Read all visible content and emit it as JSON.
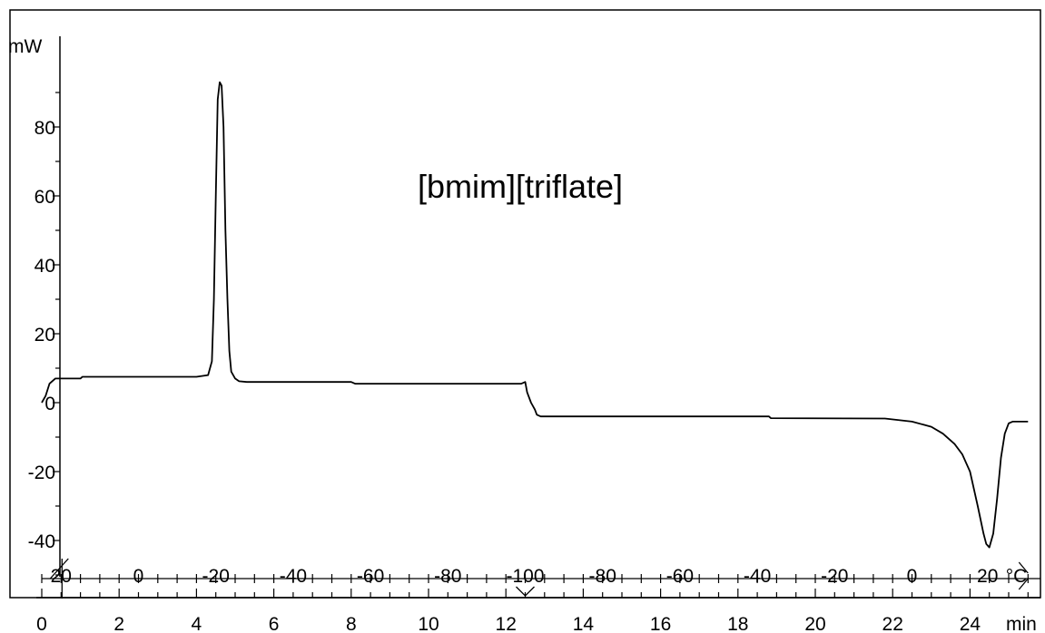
{
  "chart_data": {
    "type": "line",
    "title": "",
    "annotation": "[bmim][triflate]",
    "ylabel": "mW",
    "xlabel": "min",
    "temp_unit": "°C",
    "xlim": [
      0,
      25.5
    ],
    "ylim": [
      -50,
      100
    ],
    "y_ticks": [
      -40,
      -20,
      0,
      20,
      40,
      60,
      80
    ],
    "x_ticks": [
      0,
      2,
      4,
      6,
      8,
      10,
      12,
      14,
      16,
      18,
      20,
      22,
      24
    ],
    "temperature_ticks": [
      {
        "time": 0.5,
        "label": "20"
      },
      {
        "time": 2.5,
        "label": "0"
      },
      {
        "time": 4.5,
        "label": "-20"
      },
      {
        "time": 6.5,
        "label": "-40"
      },
      {
        "time": 8.5,
        "label": "-60"
      },
      {
        "time": 10.5,
        "label": "-80"
      },
      {
        "time": 12.5,
        "label": "-100"
      },
      {
        "time": 14.5,
        "label": "-80"
      },
      {
        "time": 16.5,
        "label": "-60"
      },
      {
        "time": 18.5,
        "label": "-40"
      },
      {
        "time": 20.5,
        "label": "-20"
      },
      {
        "time": 22.5,
        "label": "0"
      },
      {
        "time": 24.5,
        "label": "20"
      }
    ],
    "segment_markers": [
      0.5,
      12.5,
      25.5
    ],
    "grid": false,
    "series": [
      {
        "points": [
          [
            0.0,
            0
          ],
          [
            0.1,
            2
          ],
          [
            0.2,
            5.5
          ],
          [
            0.35,
            7
          ],
          [
            0.5,
            7
          ],
          [
            1.0,
            7
          ],
          [
            1.05,
            7.5
          ],
          [
            2.0,
            7.5
          ],
          [
            4.0,
            7.5
          ],
          [
            4.3,
            8
          ],
          [
            4.4,
            12
          ],
          [
            4.45,
            30
          ],
          [
            4.5,
            60
          ],
          [
            4.55,
            88
          ],
          [
            4.6,
            93
          ],
          [
            4.65,
            92
          ],
          [
            4.7,
            80
          ],
          [
            4.75,
            50
          ],
          [
            4.8,
            30
          ],
          [
            4.85,
            15
          ],
          [
            4.9,
            9
          ],
          [
            5.0,
            7
          ],
          [
            5.1,
            6.2
          ],
          [
            5.3,
            6
          ],
          [
            8.0,
            6
          ],
          [
            8.1,
            5.5
          ],
          [
            12.4,
            5.5
          ],
          [
            12.5,
            6
          ],
          [
            12.55,
            3
          ],
          [
            12.65,
            0
          ],
          [
            12.75,
            -2
          ],
          [
            12.8,
            -3.5
          ],
          [
            12.9,
            -4
          ],
          [
            13.0,
            -4
          ],
          [
            18.8,
            -4
          ],
          [
            18.85,
            -4.5
          ],
          [
            21.8,
            -4.6
          ],
          [
            22.5,
            -5.5
          ],
          [
            23.0,
            -7
          ],
          [
            23.3,
            -9
          ],
          [
            23.6,
            -12
          ],
          [
            23.8,
            -15
          ],
          [
            24.0,
            -20
          ],
          [
            24.2,
            -30
          ],
          [
            24.35,
            -38
          ],
          [
            24.42,
            -41
          ],
          [
            24.5,
            -42
          ],
          [
            24.6,
            -38
          ],
          [
            24.7,
            -28
          ],
          [
            24.8,
            -16
          ],
          [
            24.9,
            -9
          ],
          [
            25.0,
            -6
          ],
          [
            25.1,
            -5.5
          ],
          [
            25.5,
            -5.5
          ]
        ]
      }
    ]
  }
}
